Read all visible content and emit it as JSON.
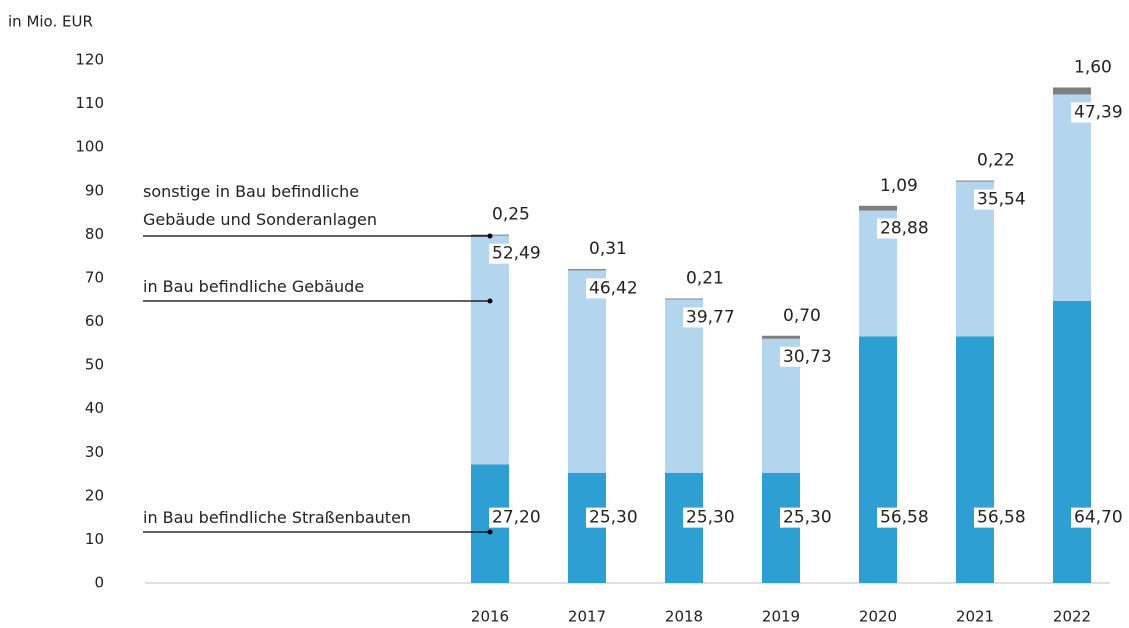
{
  "chart_data": {
    "type": "stacked_bar",
    "y_axis_label": "in Mio. EUR",
    "categories": [
      "2016",
      "2017",
      "2018",
      "2019",
      "2020",
      "2021",
      "2022"
    ],
    "series": [
      {
        "name": "in Bau befindliche Straßenbauten",
        "color": "#2e9fd3",
        "values": [
          27.2,
          25.3,
          25.3,
          25.3,
          56.58,
          56.58,
          64.7
        ],
        "value_labels": [
          "27,20",
          "25,30",
          "25,30",
          "25,30",
          "56,58",
          "56,58",
          "64,70"
        ]
      },
      {
        "name": "in Bau befindliche Gebäude",
        "color": "#b3d5ee",
        "values": [
          52.49,
          46.42,
          39.77,
          30.73,
          28.88,
          35.54,
          47.39
        ],
        "value_labels": [
          "52,49",
          "46,42",
          "39,77",
          "30,73",
          "28,88",
          "35,54",
          "47,39"
        ]
      },
      {
        "name": "sonstige in Bau befindliche Gebäude und Sonderanlagen",
        "color": "#7f7f7f",
        "values": [
          0.25,
          0.31,
          0.21,
          0.7,
          1.09,
          0.22,
          1.6
        ],
        "value_labels": [
          "0,25",
          "0,31",
          "0,21",
          "0,70",
          "1,09",
          "0,22",
          "1,60"
        ]
      }
    ],
    "ylim": [
      0,
      120
    ],
    "yticks": [
      0,
      10,
      20,
      30,
      40,
      50,
      60,
      70,
      80,
      90,
      100,
      110,
      120
    ]
  }
}
